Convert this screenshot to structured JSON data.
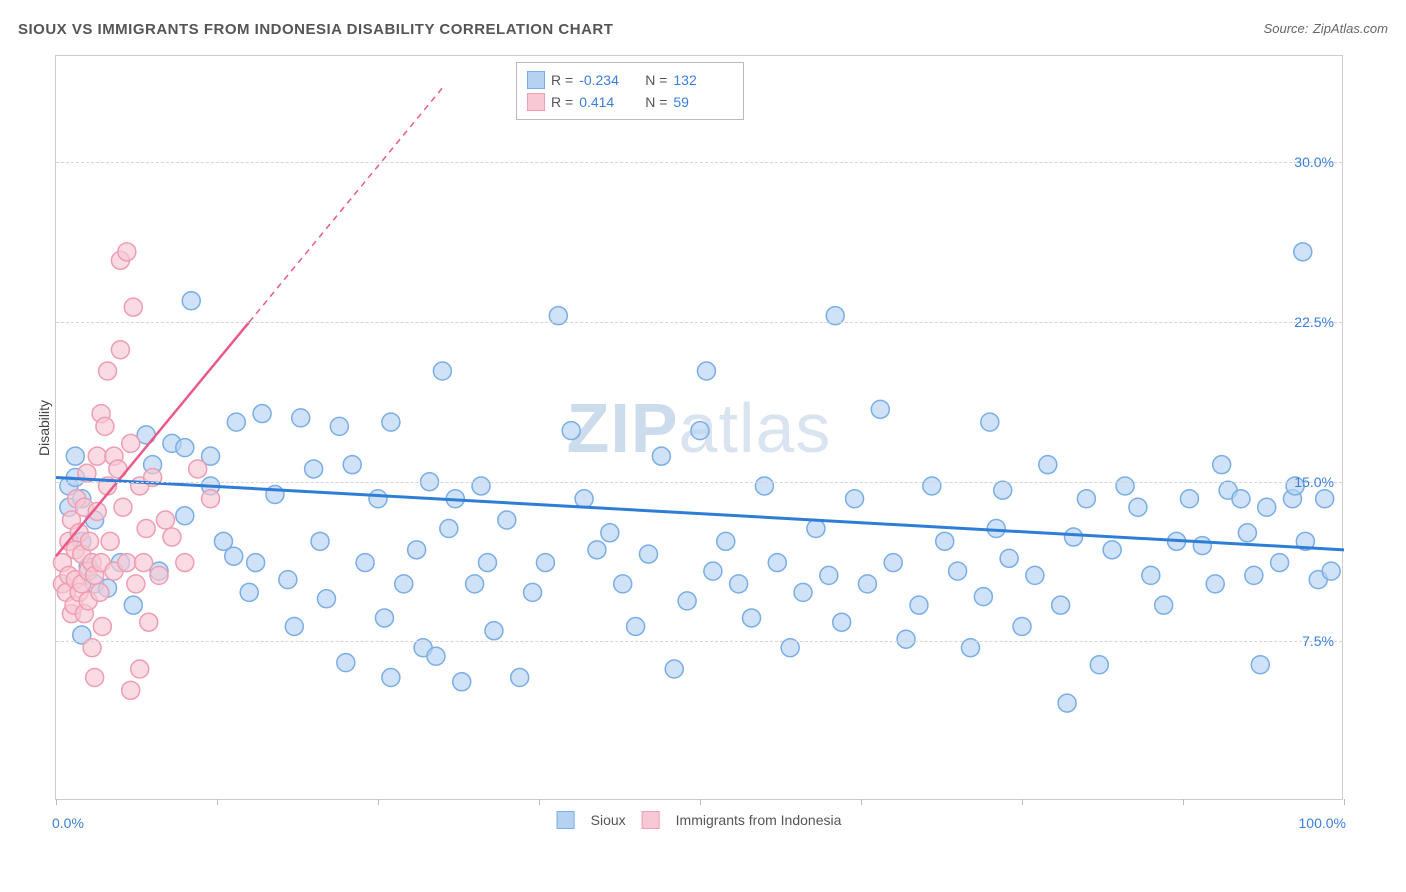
{
  "title": "SIOUX VS IMMIGRANTS FROM INDONESIA DISABILITY CORRELATION CHART",
  "source_label": "Source:",
  "source_value": "ZipAtlas.com",
  "watermark": {
    "zip": "ZIP",
    "atlas": "atlas"
  },
  "y_axis_label": "Disability",
  "chart": {
    "type": "scatter",
    "background_color": "#ffffff",
    "grid_color": "#d5d5d5",
    "axis_color": "#cccccc",
    "xlim": [
      0,
      100
    ],
    "ylim": [
      0,
      35
    ],
    "y_ticks": [
      {
        "value": 7.5,
        "label": "7.5%"
      },
      {
        "value": 15.0,
        "label": "15.0%"
      },
      {
        "value": 22.5,
        "label": "22.5%"
      },
      {
        "value": 30.0,
        "label": "30.0%"
      }
    ],
    "x_tick_positions": [
      0,
      12.5,
      25,
      37.5,
      50,
      62.5,
      75,
      87.5,
      100
    ],
    "x_min_label": "0.0%",
    "x_max_label": "100.0%",
    "marker_radius": 9,
    "marker_stroke_width": 1.5,
    "line_width_blue": 3,
    "line_width_pink_solid": 2.5,
    "line_width_pink_dash": 1.5,
    "series": {
      "sioux": {
        "label": "Sioux",
        "fill": "#b6d2f2",
        "stroke": "#7aaee6",
        "line_color": "#2e7dd7",
        "R": "-0.234",
        "N": "132",
        "trend": {
          "x1": 0,
          "y1": 15.2,
          "x2": 100,
          "y2": 11.8
        },
        "points": [
          [
            1,
            13.8
          ],
          [
            1,
            14.8
          ],
          [
            1.5,
            16.2
          ],
          [
            1.5,
            15.2
          ],
          [
            2,
            14.2
          ],
          [
            2,
            7.8
          ],
          [
            2,
            12.2
          ],
          [
            2.5,
            11
          ],
          [
            3,
            10.2
          ],
          [
            3,
            13.2
          ],
          [
            4,
            10
          ],
          [
            5,
            11.2
          ],
          [
            6,
            9.2
          ],
          [
            7,
            17.2
          ],
          [
            7.5,
            15.8
          ],
          [
            8,
            10.8
          ],
          [
            9,
            16.8
          ],
          [
            10,
            16.6
          ],
          [
            10.5,
            23.5
          ],
          [
            10,
            13.4
          ],
          [
            12,
            16.2
          ],
          [
            12,
            14.8
          ],
          [
            13,
            12.2
          ],
          [
            13.8,
            11.5
          ],
          [
            14,
            17.8
          ],
          [
            15,
            9.8
          ],
          [
            15.5,
            11.2
          ],
          [
            16,
            18.2
          ],
          [
            17,
            14.4
          ],
          [
            18,
            10.4
          ],
          [
            18.5,
            8.2
          ],
          [
            19,
            18
          ],
          [
            20,
            15.6
          ],
          [
            20.5,
            12.2
          ],
          [
            21,
            9.5
          ],
          [
            22,
            17.6
          ],
          [
            22.5,
            6.5
          ],
          [
            23,
            15.8
          ],
          [
            24,
            11.2
          ],
          [
            25,
            14.2
          ],
          [
            25.5,
            8.6
          ],
          [
            26,
            5.8
          ],
          [
            26,
            17.8
          ],
          [
            27,
            10.2
          ],
          [
            28,
            11.8
          ],
          [
            28.5,
            7.2
          ],
          [
            29,
            15
          ],
          [
            29.5,
            6.8
          ],
          [
            30,
            20.2
          ],
          [
            30.5,
            12.8
          ],
          [
            31,
            14.2
          ],
          [
            31.5,
            5.6
          ],
          [
            32.5,
            10.2
          ],
          [
            33,
            14.8
          ],
          [
            33.5,
            11.2
          ],
          [
            34,
            8
          ],
          [
            35,
            13.2
          ],
          [
            36,
            5.8
          ],
          [
            37,
            9.8
          ],
          [
            38,
            11.2
          ],
          [
            39,
            22.8
          ],
          [
            40,
            17.4
          ],
          [
            41,
            14.2
          ],
          [
            42,
            11.8
          ],
          [
            43,
            12.6
          ],
          [
            44,
            10.2
          ],
          [
            45,
            8.2
          ],
          [
            46,
            11.6
          ],
          [
            47,
            16.2
          ],
          [
            48,
            6.2
          ],
          [
            49,
            9.4
          ],
          [
            50,
            17.4
          ],
          [
            50.5,
            20.2
          ],
          [
            51,
            10.8
          ],
          [
            52,
            12.2
          ],
          [
            53,
            10.2
          ],
          [
            54,
            8.6
          ],
          [
            55,
            14.8
          ],
          [
            56,
            11.2
          ],
          [
            57,
            7.2
          ],
          [
            58,
            9.8
          ],
          [
            59,
            12.8
          ],
          [
            60,
            10.6
          ],
          [
            60.5,
            22.8
          ],
          [
            61,
            8.4
          ],
          [
            62,
            14.2
          ],
          [
            63,
            10.2
          ],
          [
            64,
            18.4
          ],
          [
            65,
            11.2
          ],
          [
            66,
            7.6
          ],
          [
            67,
            9.2
          ],
          [
            68,
            14.8
          ],
          [
            69,
            12.2
          ],
          [
            70,
            10.8
          ],
          [
            71,
            7.2
          ],
          [
            72,
            9.6
          ],
          [
            72.5,
            17.8
          ],
          [
            73,
            12.8
          ],
          [
            73.5,
            14.6
          ],
          [
            74,
            11.4
          ],
          [
            75,
            8.2
          ],
          [
            76,
            10.6
          ],
          [
            77,
            15.8
          ],
          [
            78,
            9.2
          ],
          [
            78.5,
            4.6
          ],
          [
            79,
            12.4
          ],
          [
            80,
            14.2
          ],
          [
            81,
            6.4
          ],
          [
            82,
            11.8
          ],
          [
            83,
            14.8
          ],
          [
            84,
            13.8
          ],
          [
            85,
            10.6
          ],
          [
            86,
            9.2
          ],
          [
            87,
            12.2
          ],
          [
            88,
            14.2
          ],
          [
            89,
            12
          ],
          [
            90,
            10.2
          ],
          [
            90.5,
            15.8
          ],
          [
            91,
            14.6
          ],
          [
            92,
            14.2
          ],
          [
            92.5,
            12.6
          ],
          [
            93,
            10.6
          ],
          [
            93.5,
            6.4
          ],
          [
            94,
            13.8
          ],
          [
            95,
            11.2
          ],
          [
            96,
            14.2
          ],
          [
            96.2,
            14.8
          ],
          [
            96.8,
            25.8
          ],
          [
            97,
            12.2
          ],
          [
            98,
            10.4
          ],
          [
            98.5,
            14.2
          ],
          [
            99,
            10.8
          ]
        ]
      },
      "indonesia": {
        "label": "Immigrants from Indonesia",
        "fill": "#f8c8d4",
        "stroke": "#ef9db3",
        "line_color": "#e85b89",
        "R": "0.414",
        "N": "59",
        "trend_solid": {
          "x1": 0,
          "y1": 11.5,
          "x2": 15,
          "y2": 22.5
        },
        "trend_dash": {
          "x1": 15,
          "y1": 22.5,
          "x2": 30,
          "y2": 33.5
        },
        "points": [
          [
            0.5,
            10.2
          ],
          [
            0.5,
            11.2
          ],
          [
            0.8,
            9.8
          ],
          [
            1,
            10.6
          ],
          [
            1,
            12.2
          ],
          [
            1.2,
            8.8
          ],
          [
            1.2,
            13.2
          ],
          [
            1.4,
            9.2
          ],
          [
            1.5,
            11.8
          ],
          [
            1.5,
            10.4
          ],
          [
            1.6,
            14.2
          ],
          [
            1.8,
            9.8
          ],
          [
            1.8,
            12.6
          ],
          [
            2,
            10.2
          ],
          [
            2,
            11.6
          ],
          [
            2.2,
            8.8
          ],
          [
            2.2,
            13.8
          ],
          [
            2.4,
            15.4
          ],
          [
            2.5,
            10.8
          ],
          [
            2.5,
            9.4
          ],
          [
            2.6,
            12.2
          ],
          [
            2.8,
            7.2
          ],
          [
            2.8,
            11.2
          ],
          [
            3,
            10.6
          ],
          [
            3,
            5.8
          ],
          [
            3.2,
            16.2
          ],
          [
            3.2,
            13.6
          ],
          [
            3.4,
            9.8
          ],
          [
            3.5,
            11.2
          ],
          [
            3.5,
            18.2
          ],
          [
            3.6,
            8.2
          ],
          [
            3.8,
            17.6
          ],
          [
            4,
            20.2
          ],
          [
            4,
            14.8
          ],
          [
            4.2,
            12.2
          ],
          [
            4.5,
            16.2
          ],
          [
            4.5,
            10.8
          ],
          [
            4.8,
            15.6
          ],
          [
            5,
            25.4
          ],
          [
            5,
            21.2
          ],
          [
            5.2,
            13.8
          ],
          [
            5.5,
            25.8
          ],
          [
            5.5,
            11.2
          ],
          [
            5.8,
            5.2
          ],
          [
            5.8,
            16.8
          ],
          [
            6,
            23.2
          ],
          [
            6.2,
            10.2
          ],
          [
            6.5,
            6.2
          ],
          [
            6.5,
            14.8
          ],
          [
            6.8,
            11.2
          ],
          [
            7,
            12.8
          ],
          [
            7.2,
            8.4
          ],
          [
            7.5,
            15.2
          ],
          [
            8,
            10.6
          ],
          [
            8.5,
            13.2
          ],
          [
            9,
            12.4
          ],
          [
            10,
            11.2
          ],
          [
            11,
            15.6
          ],
          [
            12,
            14.2
          ]
        ]
      }
    }
  },
  "legend_top": {
    "R_label": "R =",
    "N_label": "N ="
  }
}
